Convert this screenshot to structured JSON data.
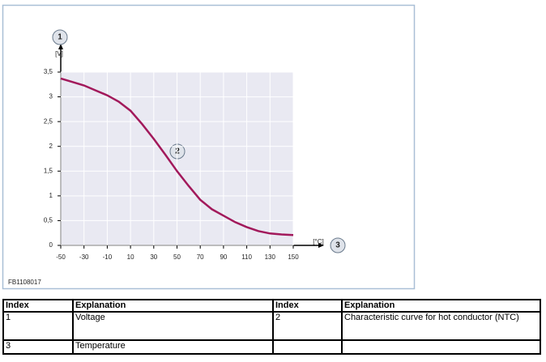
{
  "chart_data": {
    "type": "line",
    "figure_id": "FB1108017",
    "y_unit": "[V]",
    "x_unit": "[°C]",
    "callouts": [
      "1",
      "2",
      "3"
    ],
    "x": [
      -50,
      -40,
      -30,
      -20,
      -10,
      0,
      10,
      20,
      30,
      40,
      50,
      60,
      70,
      80,
      90,
      100,
      110,
      120,
      130,
      140,
      150
    ],
    "series": [
      {
        "color": "#a2195b",
        "values": [
          3.37,
          3.3,
          3.23,
          3.13,
          3.03,
          2.9,
          2.72,
          2.45,
          2.15,
          1.83,
          1.5,
          1.2,
          0.92,
          0.73,
          0.6,
          0.47,
          0.37,
          0.29,
          0.24,
          0.22,
          0.21
        ]
      }
    ],
    "xlim": [
      -50,
      150
    ],
    "xticks": [
      -50,
      -30,
      -10,
      10,
      30,
      50,
      70,
      90,
      110,
      130,
      150
    ],
    "ylim": [
      0,
      3.5
    ],
    "yticks": [
      0,
      {
        "value": 0.5,
        "label": "0,5"
      },
      1,
      {
        "value": 1.5,
        "label": "1,5"
      },
      2,
      {
        "value": 2.5,
        "label": "2,5"
      },
      3,
      {
        "value": 3.5,
        "label": "3,5"
      }
    ],
    "grid": true
  },
  "table": {
    "header": [
      "Index",
      "Explanation",
      "Index",
      "Explanation"
    ],
    "rows": [
      [
        "1",
        "Voltage",
        "2",
        "Characteristic curve for hot conductor (NTC)"
      ],
      [
        "3",
        "Temperature"
      ]
    ]
  }
}
